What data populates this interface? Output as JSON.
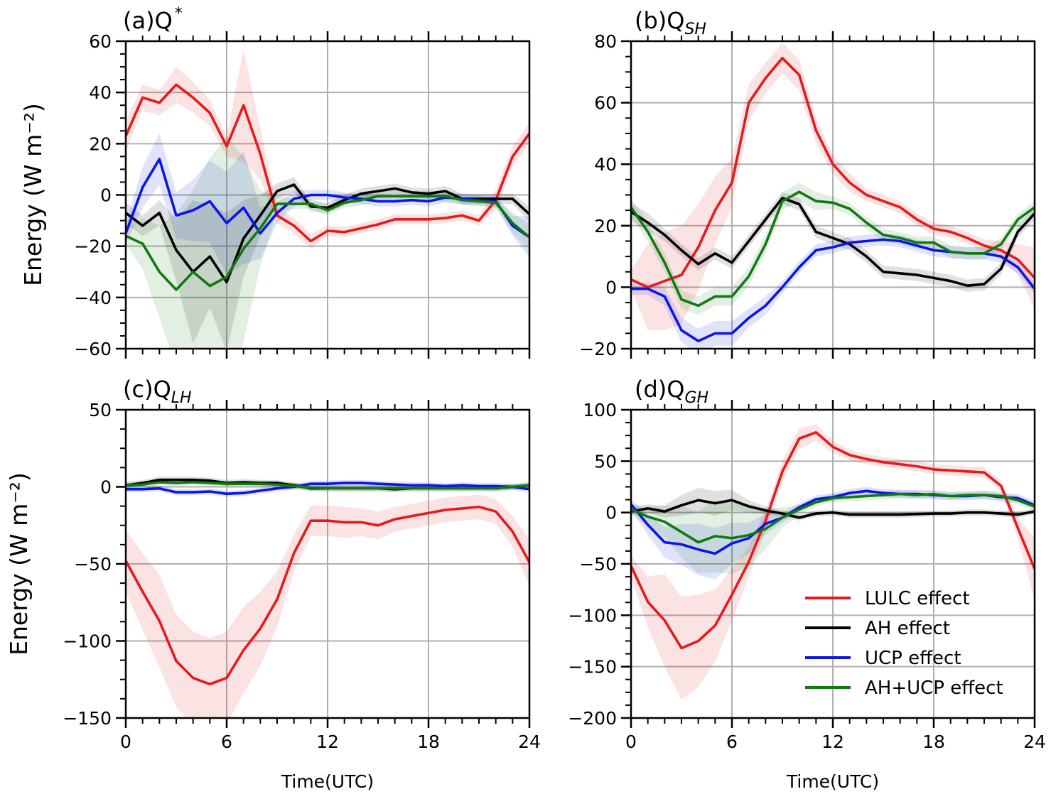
{
  "figure": {
    "ylabel": "Energy (W m⁻²)",
    "xlabel": "Time(UTC)",
    "legend": {
      "position": "lower-right of panel (d)",
      "entries": [
        {
          "label": "LULC effect",
          "color": "#e8191a"
        },
        {
          "label": "AH effect",
          "color": "#000000"
        },
        {
          "label": "UCP effect",
          "color": "#0a15e6"
        },
        {
          "label": "AH+UCP effect",
          "color": "#107a10"
        }
      ]
    }
  },
  "chart_data": [
    {
      "type": "line",
      "title": "(a)Q",
      "title_sup": "*",
      "title_sub": "",
      "xlabel": "",
      "ylabel": "Energy (W m⁻²)",
      "xlim": [
        0,
        24
      ],
      "ylim": [
        -60,
        60
      ],
      "xticks": [
        0,
        6,
        12,
        18,
        24
      ],
      "yticks": [
        -60,
        -40,
        -20,
        0,
        20,
        40,
        60
      ],
      "grid": true,
      "show_xtick_labels": false,
      "x": [
        0,
        1,
        2,
        3,
        4,
        5,
        6,
        7,
        8,
        9,
        10,
        11,
        12,
        13,
        14,
        15,
        16,
        17,
        18,
        19,
        20,
        21,
        22,
        23,
        24
      ],
      "series": [
        {
          "name": "LULC effect",
          "color": "#e8191a",
          "values": [
            23,
            38,
            36,
            43,
            38,
            32,
            19,
            35,
            16,
            -8,
            -12,
            -18,
            -14,
            -14.5,
            -13,
            -11.5,
            -9.5,
            -9.5,
            -9.5,
            -9,
            -8,
            -10,
            -2,
            15,
            24
          ],
          "band": [
            6,
            5,
            5,
            7,
            6,
            5,
            4,
            22,
            10,
            3,
            3,
            3,
            2,
            2,
            2,
            2,
            2,
            2,
            2,
            2,
            2,
            2,
            4,
            4,
            4
          ]
        },
        {
          "name": "AH effect",
          "color": "#000000",
          "values": [
            -7,
            -12,
            -7,
            -21.5,
            -30,
            -24,
            -34,
            -17,
            -8,
            1.5,
            4,
            -4.5,
            -5,
            -2,
            0.5,
            1.5,
            2.5,
            1,
            0.5,
            1.5,
            -1.5,
            -1.5,
            -1.5,
            -1.5,
            -7.5
          ],
          "band": [
            4,
            4,
            5,
            12,
            28,
            20,
            27,
            15,
            8,
            3,
            3,
            2,
            2,
            2,
            2,
            2,
            2,
            2,
            2,
            2,
            2,
            2,
            2,
            2,
            3
          ]
        },
        {
          "name": "UCP effect",
          "color": "#0a15e6",
          "values": [
            -15,
            3,
            14,
            -8,
            -6,
            -2.5,
            -11,
            -5,
            -15,
            -7,
            -1.5,
            0,
            0,
            -1,
            -1.5,
            -2.5,
            -2.5,
            -2,
            -2.5,
            -1,
            -1.5,
            -2,
            -2.5,
            -12,
            -16.5
          ],
          "band": [
            4,
            8,
            10,
            9,
            12,
            16,
            20,
            22,
            10,
            4,
            3,
            2,
            2,
            2,
            2,
            2,
            2,
            2,
            2,
            2,
            2,
            2,
            2,
            4,
            8
          ]
        },
        {
          "name": "AH+UCP effect",
          "color": "#107a10",
          "values": [
            -16,
            -19,
            -30,
            -37,
            -30,
            -35.5,
            -32,
            -21,
            -13,
            -3.5,
            -3.5,
            -3.5,
            -6,
            -3,
            -2,
            -0.5,
            -0.5,
            -0.5,
            -0.5,
            -0.5,
            -2,
            -2.5,
            -3,
            -11,
            -16.5
          ],
          "band": [
            3,
            10,
            18,
            30,
            32,
            50,
            55,
            36,
            15,
            3,
            2,
            2,
            2,
            2,
            2,
            2,
            2,
            2,
            2,
            2,
            2,
            2,
            2,
            4,
            5
          ]
        }
      ]
    },
    {
      "type": "line",
      "title": "(b)Q",
      "title_sup": "",
      "title_sub": "SH",
      "xlabel": "",
      "ylabel": "",
      "xlim": [
        0,
        24
      ],
      "ylim": [
        -20,
        80
      ],
      "xticks": [
        0,
        6,
        12,
        18,
        24
      ],
      "yticks": [
        -20,
        0,
        20,
        40,
        60,
        80
      ],
      "grid": true,
      "show_xtick_labels": false,
      "x": [
        0,
        1,
        2,
        3,
        4,
        5,
        6,
        7,
        8,
        9,
        10,
        11,
        12,
        13,
        14,
        15,
        16,
        17,
        18,
        19,
        20,
        21,
        22,
        23,
        24
      ],
      "series": [
        {
          "name": "LULC effect",
          "color": "#e8191a",
          "values": [
            2.5,
            0,
            2,
            4,
            13,
            25,
            34,
            60,
            68,
            74.5,
            69,
            51,
            40,
            34,
            30,
            28,
            26,
            22,
            19,
            18,
            16,
            13.5,
            12,
            9,
            3
          ],
          "band": [
            3,
            14,
            16,
            16,
            14,
            11,
            8,
            6,
            5,
            5,
            5,
            4,
            3,
            3,
            2,
            2,
            2,
            2,
            2,
            2,
            2,
            2,
            3,
            5,
            10
          ]
        },
        {
          "name": "AH effect",
          "color": "#000000",
          "values": [
            24.5,
            21,
            17,
            12,
            7.5,
            11,
            8,
            15,
            22,
            29,
            27,
            18,
            16,
            14,
            10,
            5,
            4.5,
            4,
            3,
            2,
            0.5,
            1,
            6,
            18,
            24
          ],
          "band": [
            3,
            3,
            2,
            2,
            2,
            2,
            2,
            2,
            2,
            2,
            2,
            2,
            2,
            2,
            2,
            2,
            2,
            2,
            2,
            2,
            2,
            2,
            2,
            2,
            2
          ]
        },
        {
          "name": "UCP effect",
          "color": "#0a15e6",
          "values": [
            -0.5,
            -0.5,
            -3,
            -14,
            -17.5,
            -15,
            -15,
            -10,
            -6,
            0,
            6.5,
            12,
            13,
            14.5,
            15,
            15.5,
            15,
            13.5,
            12,
            11.5,
            11,
            11,
            10,
            6.5,
            -0.5
          ],
          "band": [
            2,
            2,
            3,
            4,
            4,
            4,
            4,
            3,
            3,
            2,
            2,
            2,
            2,
            2,
            2,
            2,
            2,
            2,
            2,
            2,
            2,
            2,
            2,
            2,
            2
          ]
        },
        {
          "name": "AH+UCP effect",
          "color": "#107a10",
          "values": [
            26,
            18,
            8,
            -4,
            -6,
            -3,
            -3,
            3.5,
            14,
            28,
            31,
            28,
            27.5,
            25.5,
            21,
            17,
            16,
            14.5,
            14.5,
            11.5,
            11,
            11,
            14,
            22,
            26
          ],
          "band": [
            3,
            3,
            3,
            3,
            3,
            3,
            3,
            3,
            3,
            3,
            3,
            3,
            2,
            2,
            2,
            2,
            2,
            2,
            2,
            2,
            2,
            2,
            2,
            2,
            2
          ]
        }
      ]
    },
    {
      "type": "line",
      "title": "(c)Q",
      "title_sup": "",
      "title_sub": "LH",
      "xlabel": "Time(UTC)",
      "ylabel": "Energy (W m⁻²)",
      "xlim": [
        0,
        24
      ],
      "ylim": [
        -150,
        50
      ],
      "xticks": [
        0,
        6,
        12,
        18,
        24
      ],
      "yticks": [
        -150,
        -100,
        -50,
        0,
        50
      ],
      "grid": true,
      "show_xtick_labels": true,
      "x": [
        0,
        1,
        2,
        3,
        4,
        5,
        6,
        7,
        8,
        9,
        10,
        11,
        12,
        13,
        14,
        15,
        16,
        17,
        18,
        19,
        20,
        21,
        22,
        23,
        24
      ],
      "series": [
        {
          "name": "LULC effect",
          "color": "#e8191a",
          "values": [
            -48,
            -68,
            -87,
            -113,
            -124,
            -128,
            -124,
            -106,
            -92,
            -73,
            -43,
            -22,
            -22,
            -23,
            -23,
            -25,
            -21,
            -19,
            -17,
            -15,
            -14,
            -13,
            -16,
            -29,
            -49
          ],
          "band": [
            20,
            25,
            30,
            30,
            30,
            30,
            30,
            28,
            24,
            18,
            12,
            10,
            10,
            10,
            9,
            9,
            8,
            8,
            8,
            8,
            8,
            8,
            8,
            10,
            15
          ]
        },
        {
          "name": "AH effect",
          "color": "#000000",
          "values": [
            1,
            2.5,
            4.5,
            4.5,
            4.5,
            4,
            2.5,
            3,
            2.5,
            2.5,
            1,
            -1,
            -1,
            -1,
            -1,
            -1,
            -1.5,
            -1,
            -1,
            -1,
            -1,
            -1,
            -1,
            0,
            1
          ],
          "band": [
            2,
            2,
            2,
            2,
            2,
            2,
            2,
            2,
            2,
            2,
            2,
            2,
            2,
            2,
            2,
            2,
            2,
            2,
            2,
            2,
            2,
            2,
            2,
            2,
            2
          ]
        },
        {
          "name": "UCP effect",
          "color": "#0a15e6",
          "values": [
            -1.5,
            -1.5,
            -1,
            -3.5,
            -3.5,
            -3,
            -4.5,
            -4,
            -2.5,
            -1,
            0,
            2,
            2,
            2.5,
            2.5,
            2,
            1.5,
            1,
            1,
            0.5,
            1,
            0.5,
            0.5,
            0,
            -1.5
          ],
          "band": [
            2,
            2,
            2,
            2,
            2,
            2,
            2,
            2,
            2,
            2,
            2,
            2,
            2,
            2,
            2,
            2,
            2,
            2,
            2,
            2,
            2,
            2,
            2,
            2,
            2
          ]
        },
        {
          "name": "AH+UCP effect",
          "color": "#107a10",
          "values": [
            1,
            1.5,
            3,
            2.5,
            3,
            2.5,
            2,
            2,
            2,
            1.5,
            0.5,
            -0.5,
            -1,
            -1,
            -1,
            -1,
            -1,
            -1,
            -1,
            -1,
            -1,
            -1,
            -1,
            0,
            1
          ],
          "band": [
            2,
            2,
            2,
            2,
            2,
            2,
            2,
            2,
            2,
            2,
            2,
            2,
            2,
            2,
            2,
            2,
            2,
            2,
            2,
            2,
            2,
            2,
            2,
            2,
            2
          ]
        }
      ]
    },
    {
      "type": "line",
      "title": "(d)Q",
      "title_sup": "",
      "title_sub": "GH",
      "xlabel": "Time(UTC)",
      "ylabel": "",
      "xlim": [
        0,
        24
      ],
      "ylim": [
        -200,
        100
      ],
      "xticks": [
        0,
        6,
        12,
        18,
        24
      ],
      "yticks": [
        -200,
        -150,
        -100,
        -50,
        0,
        50,
        100
      ],
      "grid": true,
      "show_xtick_labels": true,
      "x": [
        0,
        1,
        2,
        3,
        4,
        5,
        6,
        7,
        8,
        9,
        10,
        11,
        12,
        13,
        14,
        15,
        16,
        17,
        18,
        19,
        20,
        21,
        22,
        23,
        24
      ],
      "series": [
        {
          "name": "LULC effect",
          "color": "#e8191a",
          "values": [
            -52,
            -87,
            -105,
            -132,
            -125,
            -110,
            -80,
            -48,
            -8,
            40,
            72,
            78,
            64,
            56,
            52,
            49,
            47,
            45,
            42,
            41,
            40,
            39,
            26,
            -15,
            -55
          ],
          "band": [
            10,
            25,
            45,
            50,
            45,
            35,
            25,
            15,
            10,
            10,
            10,
            8,
            6,
            5,
            5,
            5,
            5,
            5,
            5,
            5,
            5,
            5,
            5,
            10,
            30
          ]
        },
        {
          "name": "AH effect",
          "color": "#000000",
          "values": [
            1,
            4,
            1,
            7,
            12,
            9,
            12,
            6,
            2,
            -1,
            -5,
            -1,
            0,
            -2,
            -2,
            -2,
            -2,
            -1.5,
            -1,
            -1,
            0,
            0,
            -1,
            -2,
            1
          ],
          "band": [
            4,
            4,
            6,
            10,
            12,
            12,
            10,
            6,
            4,
            3,
            3,
            3,
            3,
            3,
            3,
            3,
            3,
            3,
            3,
            3,
            3,
            3,
            3,
            3,
            3
          ]
        },
        {
          "name": "UCP effect",
          "color": "#0a15e6",
          "values": [
            8,
            -12,
            -29,
            -31,
            -36,
            -40,
            -30,
            -25,
            -11,
            -5,
            5,
            13,
            15,
            19,
            21,
            19,
            18,
            18,
            17,
            16,
            16,
            17,
            15,
            14,
            7
          ],
          "band": [
            5,
            10,
            15,
            20,
            25,
            25,
            20,
            15,
            10,
            5,
            4,
            4,
            4,
            4,
            4,
            4,
            4,
            4,
            4,
            4,
            4,
            4,
            4,
            4,
            4
          ]
        },
        {
          "name": "AH+UCP effect",
          "color": "#107a10",
          "values": [
            3,
            -4,
            -9,
            -19,
            -29,
            -23,
            -25,
            -22,
            -16,
            -5,
            3,
            10,
            14,
            15,
            16,
            17,
            18,
            17,
            18,
            16,
            17,
            17,
            16,
            12,
            6
          ],
          "band": [
            5,
            10,
            15,
            25,
            30,
            35,
            35,
            30,
            20,
            10,
            5,
            4,
            4,
            4,
            4,
            4,
            4,
            4,
            4,
            4,
            4,
            4,
            4,
            4,
            4
          ]
        }
      ]
    }
  ]
}
